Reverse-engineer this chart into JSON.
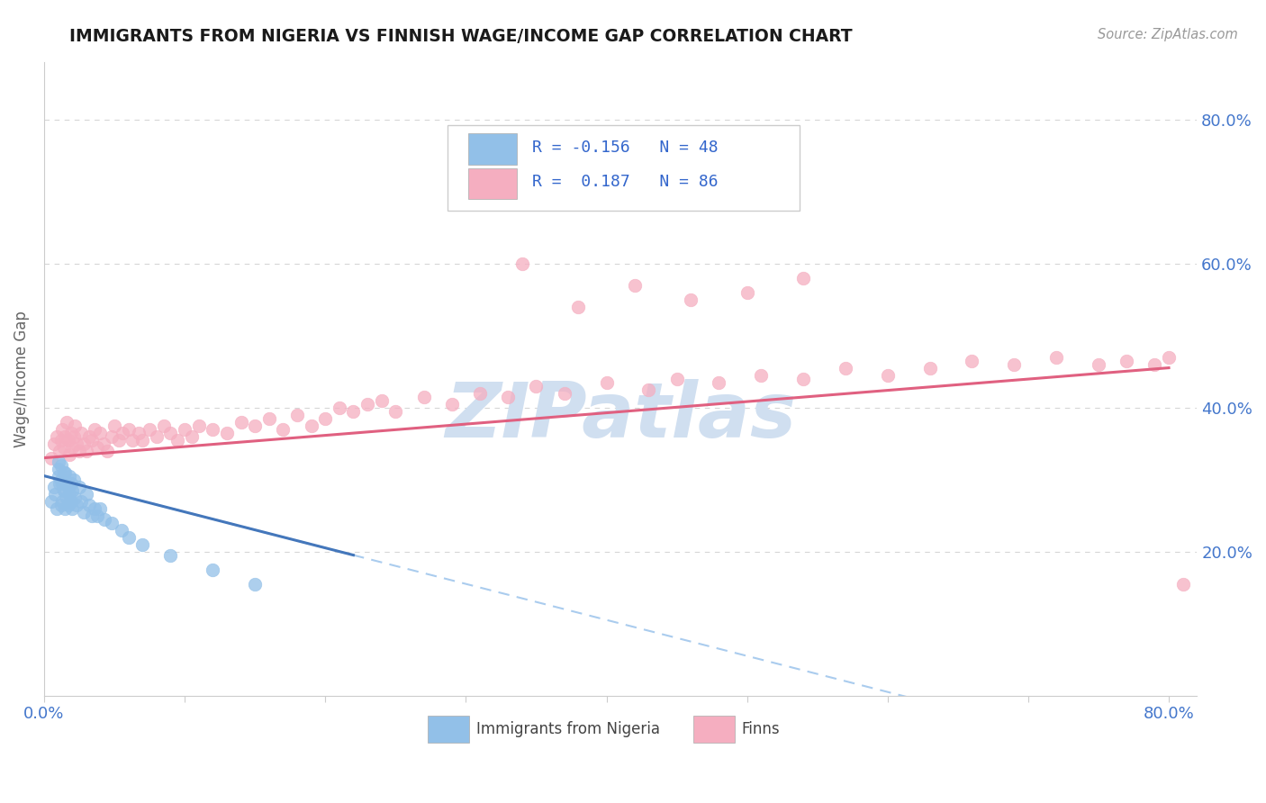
{
  "title": "IMMIGRANTS FROM NIGERIA VS FINNISH WAGE/INCOME GAP CORRELATION CHART",
  "source_text": "Source: ZipAtlas.com",
  "ylabel": "Wage/Income Gap",
  "xlim": [
    0.0,
    0.82
  ],
  "ylim": [
    0.0,
    0.88
  ],
  "x_ticks": [
    0.0,
    0.1,
    0.2,
    0.3,
    0.4,
    0.5,
    0.6,
    0.7,
    0.8
  ],
  "x_tick_labels": [
    "0.0%",
    "",
    "",
    "",
    "",
    "",
    "",
    "",
    "80.0%"
  ],
  "y_ticks_right": [
    0.2,
    0.4,
    0.6,
    0.8
  ],
  "y_tick_labels_right": [
    "20.0%",
    "40.0%",
    "60.0%",
    "80.0%"
  ],
  "r_blue": -0.156,
  "n_blue": 48,
  "r_pink": 0.187,
  "n_pink": 86,
  "blue_color": "#92c0e8",
  "pink_color": "#f5aec0",
  "trend_blue_color": "#4477bb",
  "trend_pink_color": "#e06080",
  "dashed_color": "#aaccee",
  "watermark_color": "#d0dff0",
  "title_color": "#1a1a1a",
  "source_color": "#999999",
  "axis_label_color": "#4477cc",
  "legend_text_color": "#3366cc",
  "blue_trend_x0": 0.0,
  "blue_trend_y0": 0.305,
  "blue_trend_x1": 0.22,
  "blue_trend_y1": 0.195,
  "pink_trend_x0": 0.0,
  "pink_trend_y0": 0.33,
  "pink_trend_x1": 0.8,
  "pink_trend_y1": 0.455,
  "blue_scatter_x": [
    0.005,
    0.007,
    0.008,
    0.009,
    0.01,
    0.01,
    0.01,
    0.011,
    0.012,
    0.012,
    0.012,
    0.013,
    0.013,
    0.014,
    0.014,
    0.015,
    0.015,
    0.015,
    0.016,
    0.016,
    0.017,
    0.017,
    0.018,
    0.018,
    0.019,
    0.019,
    0.02,
    0.02,
    0.021,
    0.022,
    0.023,
    0.025,
    0.026,
    0.028,
    0.03,
    0.032,
    0.034,
    0.036,
    0.038,
    0.04,
    0.043,
    0.048,
    0.055,
    0.06,
    0.07,
    0.09,
    0.12,
    0.15
  ],
  "blue_scatter_y": [
    0.27,
    0.29,
    0.28,
    0.26,
    0.305,
    0.315,
    0.325,
    0.295,
    0.265,
    0.3,
    0.32,
    0.27,
    0.295,
    0.31,
    0.285,
    0.26,
    0.285,
    0.31,
    0.275,
    0.295,
    0.265,
    0.29,
    0.28,
    0.305,
    0.27,
    0.295,
    0.26,
    0.285,
    0.3,
    0.275,
    0.265,
    0.29,
    0.27,
    0.255,
    0.28,
    0.265,
    0.25,
    0.26,
    0.25,
    0.26,
    0.245,
    0.24,
    0.23,
    0.22,
    0.21,
    0.195,
    0.175,
    0.155
  ],
  "pink_scatter_x": [
    0.005,
    0.007,
    0.009,
    0.011,
    0.012,
    0.013,
    0.014,
    0.015,
    0.016,
    0.017,
    0.018,
    0.019,
    0.02,
    0.021,
    0.022,
    0.023,
    0.025,
    0.026,
    0.028,
    0.03,
    0.032,
    0.034,
    0.036,
    0.038,
    0.04,
    0.042,
    0.045,
    0.048,
    0.05,
    0.053,
    0.056,
    0.06,
    0.063,
    0.067,
    0.07,
    0.075,
    0.08,
    0.085,
    0.09,
    0.095,
    0.1,
    0.105,
    0.11,
    0.12,
    0.13,
    0.14,
    0.15,
    0.16,
    0.17,
    0.18,
    0.19,
    0.2,
    0.21,
    0.22,
    0.23,
    0.24,
    0.25,
    0.27,
    0.29,
    0.31,
    0.33,
    0.35,
    0.37,
    0.4,
    0.43,
    0.45,
    0.48,
    0.51,
    0.54,
    0.57,
    0.6,
    0.63,
    0.66,
    0.69,
    0.72,
    0.75,
    0.77,
    0.79,
    0.8,
    0.81,
    0.34,
    0.38,
    0.42,
    0.46,
    0.5,
    0.54
  ],
  "pink_scatter_y": [
    0.33,
    0.35,
    0.36,
    0.34,
    0.355,
    0.37,
    0.345,
    0.36,
    0.38,
    0.355,
    0.335,
    0.365,
    0.345,
    0.36,
    0.375,
    0.35,
    0.34,
    0.365,
    0.35,
    0.34,
    0.36,
    0.355,
    0.37,
    0.345,
    0.365,
    0.35,
    0.34,
    0.36,
    0.375,
    0.355,
    0.365,
    0.37,
    0.355,
    0.365,
    0.355,
    0.37,
    0.36,
    0.375,
    0.365,
    0.355,
    0.37,
    0.36,
    0.375,
    0.37,
    0.365,
    0.38,
    0.375,
    0.385,
    0.37,
    0.39,
    0.375,
    0.385,
    0.4,
    0.395,
    0.405,
    0.41,
    0.395,
    0.415,
    0.405,
    0.42,
    0.415,
    0.43,
    0.42,
    0.435,
    0.425,
    0.44,
    0.435,
    0.445,
    0.44,
    0.455,
    0.445,
    0.455,
    0.465,
    0.46,
    0.47,
    0.46,
    0.465,
    0.46,
    0.47,
    0.155,
    0.6,
    0.54,
    0.57,
    0.55,
    0.56,
    0.58
  ]
}
